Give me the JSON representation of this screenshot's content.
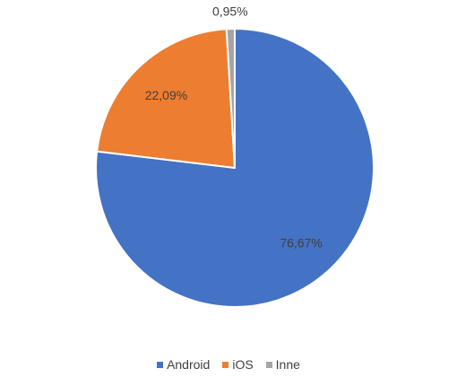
{
  "chart_data": {
    "type": "pie",
    "title": "",
    "categories": [
      "Android",
      "iOS",
      "Inne"
    ],
    "values": [
      76.67,
      22.09,
      0.95
    ],
    "data_labels": [
      "76,67%",
      "22,09%",
      "0,95%"
    ],
    "colors": [
      "#4472C4",
      "#ED7D31",
      "#A5A5A5"
    ],
    "legend_position": "bottom",
    "start_angle_deg": 0,
    "direction": "clockwise"
  }
}
